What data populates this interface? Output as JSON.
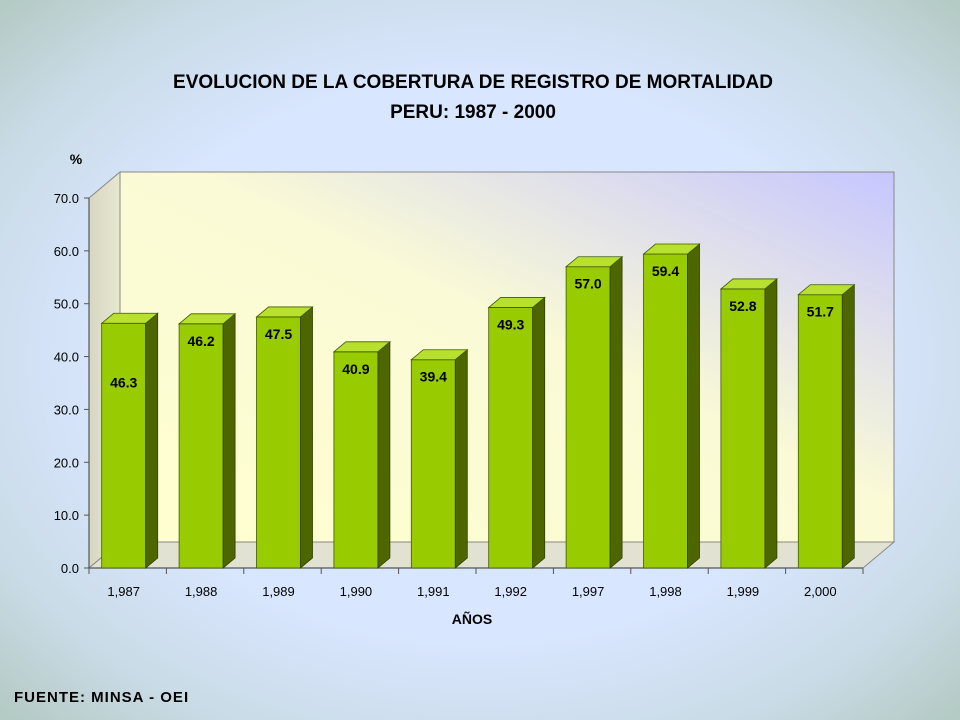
{
  "chart_data": {
    "type": "bar",
    "title": "EVOLUCION DE LA COBERTURA DE REGISTRO DE MORTALIDAD",
    "subtitle": "PERU: 1987 - 2000",
    "ylabel": "%",
    "xlabel": "AÑOS",
    "categories": [
      "1,987",
      "1,988",
      "1,989",
      "1,990",
      "1,991",
      "1,992",
      "1,997",
      "1,998",
      "1,999",
      "2,000"
    ],
    "values": [
      46.3,
      46.2,
      47.5,
      40.9,
      39.4,
      49.3,
      57.0,
      59.4,
      52.8,
      51.7
    ],
    "value_labels": [
      "46.3",
      "46.2",
      "47.5",
      "40.9",
      "39.4",
      "49.3",
      "57.0",
      "59.4",
      "52.8",
      "51.7"
    ],
    "ylim": [
      0,
      70
    ],
    "yticks": [
      "0.0",
      "10.0",
      "20.0",
      "30.0",
      "40.0",
      "50.0",
      "60.0",
      "70.0"
    ],
    "grid": false,
    "legend": "none",
    "colors": {
      "bar": "#99cc00",
      "bar_side": "#4d6600",
      "bar_top": "#b8e02e",
      "wall": "#ffffcc",
      "wall_accent": "#c8c8ff"
    }
  },
  "source": "FUENTE: MINSA - OEI"
}
